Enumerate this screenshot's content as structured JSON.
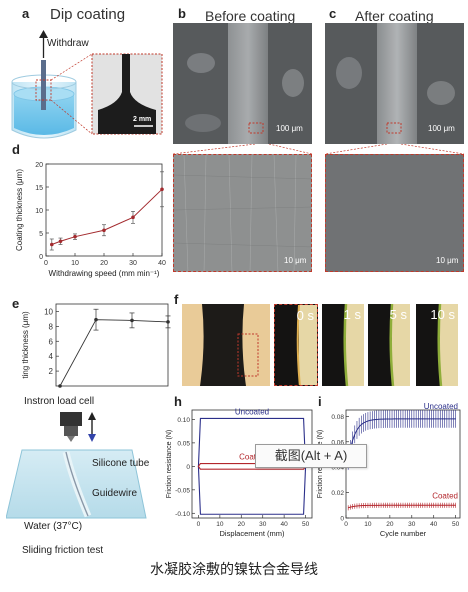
{
  "panels": {
    "a": {
      "letter": "a",
      "title": "Dip coating",
      "withdraw": "Withdraw",
      "scale": "2 mm"
    },
    "b": {
      "letter": "b",
      "title": "Before coating",
      "scale_top": "100 μm",
      "scale_bottom": "10 μm"
    },
    "c": {
      "letter": "c",
      "title": "After coating",
      "scale_top": "100 μm",
      "scale_bottom": "10 μm"
    },
    "d": {
      "letter": "d"
    },
    "e": {
      "letter": "e"
    },
    "f": {
      "letter": "f",
      "times": [
        "0 s",
        "1 s",
        "5 s",
        "10 s"
      ]
    },
    "g": {
      "letter": "",
      "load_cell": "Instron load cell",
      "silicone": "Silicone tube",
      "guidewire": "Guidewire",
      "water": "Water (37°C)",
      "caption": "Sliding friction test"
    },
    "h": {
      "letter": "h"
    },
    "i": {
      "letter": "i"
    }
  },
  "tooltip": "截图(Alt + A)",
  "caption": "水凝胶涂敷的镍钛合金导线",
  "chart_data": [
    {
      "id": "d",
      "type": "line",
      "xlabel": "Withdrawing speed (mm min⁻¹)",
      "ylabel": "Coating thickness (μm)",
      "xlim": [
        0,
        40
      ],
      "ylim": [
        0,
        20
      ],
      "xticks": [
        "0",
        "10",
        "20",
        "30",
        "40"
      ],
      "yticks": [
        "0",
        "5",
        "10",
        "15",
        "20"
      ],
      "x": [
        2,
        5,
        10,
        20,
        30,
        40
      ],
      "y": [
        2.5,
        3.2,
        4.2,
        5.6,
        8.4,
        14.5
      ],
      "err": [
        1.2,
        0.7,
        0.6,
        1.2,
        1.3,
        3.8
      ],
      "color": "#a32a2e"
    },
    {
      "id": "e",
      "type": "line",
      "ylabel": "ting thickness (μm)",
      "ylim": [
        0,
        11
      ],
      "yticks": [
        "2",
        "4",
        "6",
        "8",
        "10"
      ],
      "x": [
        0,
        1,
        2,
        3
      ],
      "y": [
        0,
        8.9,
        8.8,
        8.6
      ],
      "err": [
        0,
        1.4,
        1.0,
        0.8
      ],
      "color": "#333333"
    },
    {
      "id": "h",
      "type": "line",
      "xlabel": "Displacement (mm)",
      "ylabel": "Friction resistance (N)",
      "xlim": [
        -3,
        53
      ],
      "ylim": [
        -0.11,
        0.12
      ],
      "xticks": [
        "0",
        "10",
        "20",
        "30",
        "40",
        "50"
      ],
      "yticks": [
        "-0.10",
        "-0.05",
        "0",
        "0.05",
        "0.10"
      ],
      "series": [
        {
          "name": "Uncoated",
          "color": "#2b2f8a",
          "level": 0.102,
          "neg": -0.102
        },
        {
          "name": "Coated",
          "color": "#b3262c",
          "level": 0.006,
          "neg": -0.006
        }
      ]
    },
    {
      "id": "i",
      "type": "line",
      "xlabel": "Cycle number",
      "ylabel": "Friction resistance (N)",
      "xlim": [
        0,
        52
      ],
      "ylim": [
        0,
        0.085
      ],
      "xticks": [
        "0",
        "10",
        "20",
        "30",
        "40",
        "50"
      ],
      "yticks": [
        "0",
        "0.02",
        "0.04",
        "0.06",
        "0.08"
      ],
      "series": [
        {
          "name": "Uncoated",
          "color": "#2b2f8a",
          "plateau": 0.078,
          "start": 0.045,
          "err": 0.007
        },
        {
          "name": "Coated",
          "color": "#b3262c",
          "plateau": 0.01,
          "start": 0.008,
          "err": 0.002
        }
      ]
    }
  ]
}
